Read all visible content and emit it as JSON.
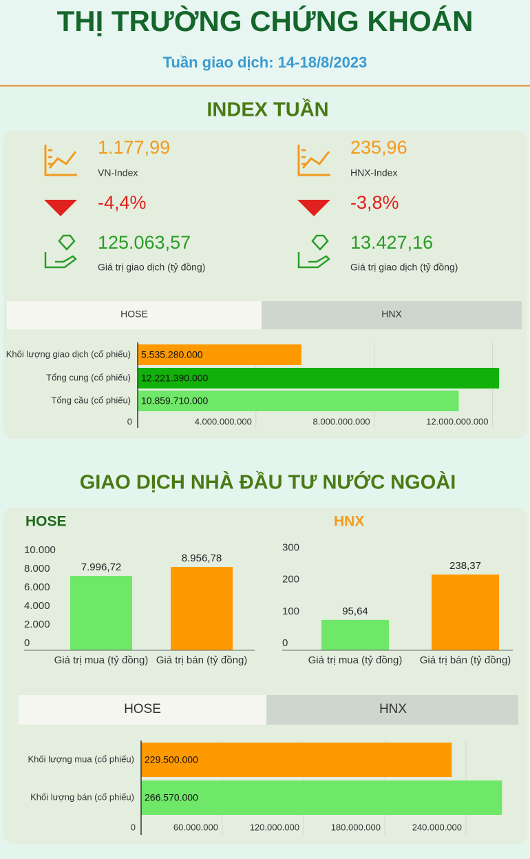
{
  "header": {
    "title": "THỊ TRƯỜNG CHỨNG KHOÁN",
    "subtitle": "Tuần giao dịch: 14-18/8/2023"
  },
  "index_section": {
    "title": "INDEX TUẦN",
    "indices": [
      {
        "value": "1.177,99",
        "name": "VN-Index",
        "change": "-4,4%",
        "trade_value": "125.063,57",
        "trade_label": "Giá trị giao dịch (tỷ đồng)"
      },
      {
        "value": "235,96",
        "name": "HNX-Index",
        "change": "-3,8%",
        "trade_value": "13.427,16",
        "trade_label": "Giá trị giao dịch (tỷ đồng)"
      }
    ],
    "tabs": [
      "HOSE",
      "HNX"
    ]
  },
  "foreign_section": {
    "title": "GIAO DỊCH NHÀ ĐẦU TƯ NƯỚC NGOÀI",
    "tabs": [
      "HOSE",
      "HNX"
    ]
  },
  "chart_data": [
    {
      "type": "hbar",
      "categories": [
        "Khối lượng giao dịch (cổ phiếu)",
        "Tổng cung (cổ phiếu)",
        "Tổng cầu (cổ phiếu)"
      ],
      "values": [
        5535280000,
        12221390000,
        10859710000
      ],
      "value_labels": [
        "5.535.280.000",
        "12.221.390.000",
        "10.859.710.000"
      ],
      "colors": [
        "#ff9900",
        "#12b00a",
        "#6fe768"
      ],
      "xlim": [
        0,
        12500000000
      ],
      "xticks": [
        0,
        {
          "value": 4000000000,
          "label": "4.000.000.000"
        },
        {
          "value": 8000000000,
          "label": "8.000.000.000"
        },
        {
          "value": 12000000000,
          "label": "12.000.000.000"
        }
      ],
      "grid": true
    },
    {
      "type": "bar",
      "title": "HOSE",
      "categories": [
        "Giá trị mua (tỷ đồng)",
        "Giá trị bán (tỷ đồng)"
      ],
      "values": [
        7996.72,
        8956.78
      ],
      "value_labels": [
        "7.996,72",
        "8.956,78"
      ],
      "colors": [
        "#6fe768",
        "#ff9900"
      ],
      "ylim": [
        0,
        10000
      ],
      "yticks": [
        0,
        {
          "value": 2000,
          "label": "2.000"
        },
        {
          "value": 4000,
          "label": "4.000"
        },
        {
          "value": 6000,
          "label": "6.000"
        },
        {
          "value": 8000,
          "label": "8.000"
        },
        {
          "value": 10000,
          "label": "10.000"
        }
      ]
    },
    {
      "type": "bar",
      "title": "HNX",
      "categories": [
        "Giá trị mua (tỷ đồng)",
        "Giá trị bán (tỷ đồng)"
      ],
      "values": [
        95.64,
        238.37
      ],
      "value_labels": [
        "95,64",
        "238,37"
      ],
      "colors": [
        "#6fe768",
        "#ff9900"
      ],
      "ylim": [
        0,
        300
      ],
      "yticks": [
        0,
        100,
        200,
        300
      ]
    },
    {
      "type": "hbar",
      "categories": [
        "Khối lượng mua (cổ phiếu)",
        "Khối lượng bán (cổ phiếu)"
      ],
      "values": [
        229500000,
        266570000
      ],
      "value_labels": [
        "229.500.000",
        "266.570.000"
      ],
      "colors": [
        "#ff9900",
        "#6fe768"
      ],
      "xlim": [
        0,
        270000000
      ],
      "xticks": [
        0,
        {
          "value": 60000000,
          "label": "60.000.000"
        },
        {
          "value": 120000000,
          "label": "120.000.000"
        },
        {
          "value": 180000000,
          "label": "180.000.000"
        },
        {
          "value": 240000000,
          "label": "240.000.000"
        }
      ],
      "grid": true
    }
  ]
}
